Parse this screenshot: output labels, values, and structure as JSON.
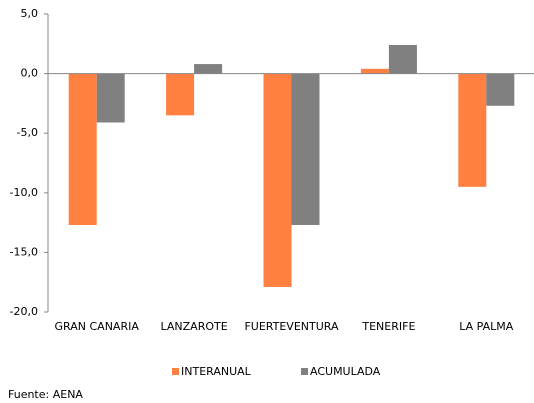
{
  "chart_data": {
    "type": "bar",
    "categories": [
      "GRAN CANARIA",
      "LANZAROTE",
      "FUERTEVENTURA",
      "TENERIFE",
      "LA PALMA"
    ],
    "series": [
      {
        "name": "INTERANUAL",
        "color": "#ff8041",
        "values": [
          -12.7,
          -3.5,
          -17.9,
          0.4,
          -9.5
        ]
      },
      {
        "name": "ACUMULADA",
        "color": "#808080",
        "values": [
          -4.1,
          0.8,
          -12.7,
          2.4,
          -2.7
        ]
      }
    ],
    "ylim": [
      -20,
      5
    ],
    "yticks": [
      {
        "value": -20,
        "label": "-20,0"
      },
      {
        "value": -15,
        "label": "-15,0"
      },
      {
        "value": -10,
        "label": "-10,0"
      },
      {
        "value": -5,
        "label": "-5,0"
      },
      {
        "value": 0,
        "label": "0,0"
      },
      {
        "value": 5,
        "label": "5,0"
      }
    ],
    "grid": false,
    "legend": "bottom",
    "source": "Fuente: AENA"
  }
}
